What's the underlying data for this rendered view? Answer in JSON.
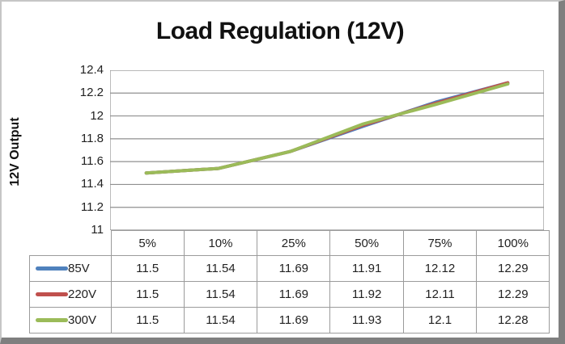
{
  "chart_data": {
    "type": "line",
    "title": "Load Regulation (12V)",
    "ylabel": "12V Output",
    "xlabel": "",
    "categories": [
      "5%",
      "10%",
      "25%",
      "50%",
      "75%",
      "100%"
    ],
    "series": [
      {
        "name": "85V",
        "color": "#4F81BD",
        "values": [
          11.5,
          11.54,
          11.69,
          11.91,
          12.12,
          12.29
        ]
      },
      {
        "name": "220V",
        "color": "#C0504D",
        "values": [
          11.5,
          11.54,
          11.69,
          11.92,
          12.11,
          12.29
        ]
      },
      {
        "name": "300V",
        "color": "#9BBB59",
        "values": [
          11.5,
          11.54,
          11.69,
          11.93,
          12.1,
          12.28
        ]
      }
    ],
    "ylim": [
      11,
      12.4
    ],
    "yticks": [
      11,
      11.2,
      11.4,
      11.6,
      11.8,
      12,
      12.2,
      12.4
    ],
    "grid": true,
    "legend_position": "data-table-left",
    "data_table": true
  },
  "style": {
    "gridline_color": "#8f8f8f",
    "axis_color": "#8f8f8f",
    "table_border_color": "#9b9b9b",
    "text_color": "#222222",
    "title_color": "#111111",
    "background": "#ffffff"
  }
}
